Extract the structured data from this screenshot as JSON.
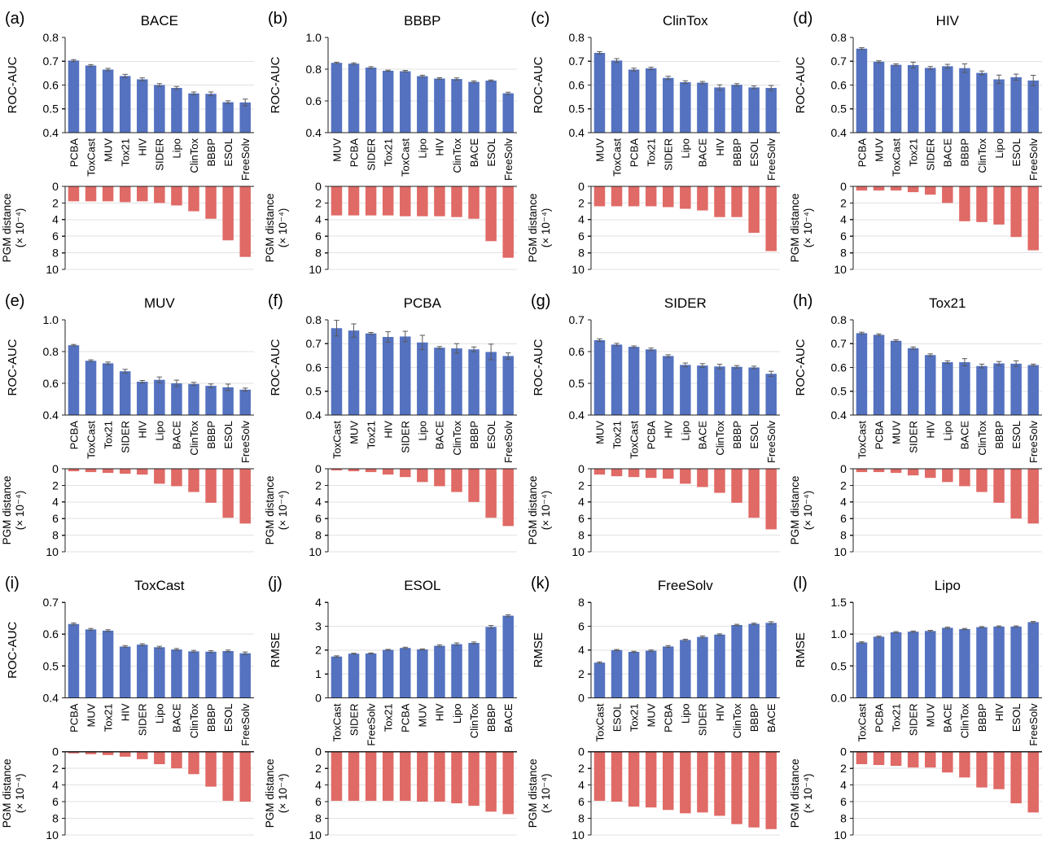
{
  "figure": {
    "colors": {
      "bar_blue": "#5472c0",
      "bar_red": "#e06a66",
      "error_bar": "#595959",
      "grid": "#e2e2e2",
      "axis": "#1f1f1f",
      "text": "#000000",
      "background": "#ffffff"
    },
    "pgm_axis": {
      "label_line1": "PGM distance",
      "label_line2": "(× 10⁻⁴)",
      "ticks": [
        0,
        2,
        4,
        6,
        8,
        10
      ],
      "tick_labels": [
        "0",
        "2",
        "4",
        "6",
        "8",
        "10"
      ],
      "max": 10,
      "direction": "down"
    }
  },
  "chart_data": [
    {
      "panel": "(a)",
      "title": "BACE",
      "type": "bar",
      "categories": [
        "PCBA",
        "ToxCast",
        "MUV",
        "Tox21",
        "HIV",
        "SIDER",
        "Lipo",
        "ClinTox",
        "BBBP",
        "ESOL",
        "FreeSolv"
      ],
      "top": {
        "ylabel": "ROC-AUC",
        "ylim": [
          0.4,
          0.8
        ],
        "yticks": [
          0.4,
          0.5,
          0.6,
          0.7,
          0.8
        ],
        "ytick_labels": [
          "0.4",
          "0.5",
          "0.6",
          "0.7",
          "0.8"
        ],
        "values": [
          0.703,
          0.682,
          0.665,
          0.638,
          0.624,
          0.6,
          0.588,
          0.565,
          0.563,
          0.528,
          0.527
        ],
        "errors": [
          0.004,
          0.004,
          0.005,
          0.007,
          0.006,
          0.006,
          0.006,
          0.006,
          0.008,
          0.006,
          0.014
        ]
      },
      "bottom": {
        "values": [
          1.8,
          1.8,
          1.8,
          1.9,
          1.8,
          2.0,
          2.3,
          3.0,
          3.9,
          6.5,
          8.5
        ]
      }
    },
    {
      "panel": "(b)",
      "title": "BBBP",
      "type": "bar",
      "categories": [
        "MUV",
        "PCBA",
        "SIDER",
        "Tox21",
        "ToxCast",
        "Lipo",
        "HIV",
        "ClinTox",
        "BACE",
        "ESOL",
        "FreeSolv"
      ],
      "top": {
        "ylabel": "ROC-AUC",
        "ylim": [
          0.4,
          1.0
        ],
        "yticks": [
          0.4,
          0.6,
          0.8,
          1.0
        ],
        "ytick_labels": [
          "0.4",
          "0.6",
          "0.8",
          "1.0"
        ],
        "values": [
          0.84,
          0.835,
          0.81,
          0.79,
          0.787,
          0.756,
          0.741,
          0.738,
          0.72,
          0.728,
          0.648
        ],
        "errors": [
          0.004,
          0.005,
          0.006,
          0.004,
          0.005,
          0.006,
          0.005,
          0.007,
          0.006,
          0.004,
          0.007
        ]
      },
      "bottom": {
        "values": [
          3.5,
          3.5,
          3.5,
          3.5,
          3.6,
          3.6,
          3.6,
          3.7,
          3.9,
          6.6,
          8.6
        ]
      }
    },
    {
      "panel": "(c)",
      "title": "ClinTox",
      "type": "bar",
      "categories": [
        "MUV",
        "ToxCast",
        "PCBA",
        "Tox21",
        "SIDER",
        "Lipo",
        "BACE",
        "HIV",
        "BBBP",
        "ESOL",
        "FreeSolv"
      ],
      "top": {
        "ylabel": "ROC-AUC",
        "ylim": [
          0.4,
          0.8
        ],
        "yticks": [
          0.4,
          0.5,
          0.6,
          0.7,
          0.8
        ],
        "ytick_labels": [
          "0.4",
          "0.5",
          "0.6",
          "0.7",
          "0.8"
        ],
        "values": [
          0.735,
          0.703,
          0.665,
          0.67,
          0.63,
          0.612,
          0.61,
          0.59,
          0.601,
          0.59,
          0.588
        ],
        "errors": [
          0.005,
          0.008,
          0.006,
          0.005,
          0.007,
          0.006,
          0.005,
          0.011,
          0.005,
          0.006,
          0.01
        ]
      },
      "bottom": {
        "values": [
          2.4,
          2.4,
          2.4,
          2.4,
          2.5,
          2.7,
          2.9,
          3.7,
          3.7,
          5.6,
          7.8
        ]
      }
    },
    {
      "panel": "(d)",
      "title": "HIV",
      "type": "bar",
      "categories": [
        "PCBA",
        "MUV",
        "ToxCast",
        "Tox21",
        "SIDER",
        "BACE",
        "BBBP",
        "ClinTox",
        "Lipo",
        "ESOL",
        "FreeSolv"
      ],
      "top": {
        "ylabel": "ROC-AUC",
        "ylim": [
          0.4,
          0.8
        ],
        "yticks": [
          0.4,
          0.5,
          0.6,
          0.7,
          0.8
        ],
        "ytick_labels": [
          "0.4",
          "0.5",
          "0.6",
          "0.7",
          "0.8"
        ],
        "values": [
          0.753,
          0.698,
          0.685,
          0.684,
          0.672,
          0.679,
          0.671,
          0.651,
          0.624,
          0.633,
          0.619
        ],
        "errors": [
          0.004,
          0.004,
          0.004,
          0.012,
          0.006,
          0.008,
          0.018,
          0.008,
          0.018,
          0.013,
          0.022
        ]
      },
      "bottom": {
        "values": [
          0.5,
          0.5,
          0.5,
          0.7,
          1.0,
          2.0,
          4.2,
          4.3,
          4.6,
          6.1,
          7.7
        ]
      }
    },
    {
      "panel": "(e)",
      "title": "MUV",
      "type": "bar",
      "categories": [
        "PCBA",
        "ToxCast",
        "Tox21",
        "SIDER",
        "HIV",
        "Lipo",
        "BACE",
        "ClinTox",
        "BBBP",
        "ESOL",
        "FreeSolv"
      ],
      "top": {
        "ylabel": "ROC-AUC",
        "ylim": [
          0.4,
          1.0
        ],
        "yticks": [
          0.4,
          0.6,
          0.8,
          1.0
        ],
        "ytick_labels": [
          "0.4",
          "0.6",
          "0.8",
          "1.0"
        ],
        "values": [
          0.84,
          0.742,
          0.726,
          0.676,
          0.61,
          0.622,
          0.6,
          0.596,
          0.584,
          0.575,
          0.56
        ],
        "errors": [
          0.005,
          0.006,
          0.008,
          0.012,
          0.008,
          0.018,
          0.02,
          0.01,
          0.012,
          0.02,
          0.01
        ]
      },
      "bottom": {
        "values": [
          0.3,
          0.4,
          0.5,
          0.6,
          0.7,
          1.8,
          2.1,
          2.8,
          4.1,
          5.9,
          6.6
        ]
      }
    },
    {
      "panel": "(f)",
      "title": "PCBA",
      "type": "bar",
      "categories": [
        "ToxCast",
        "MUV",
        "Tox21",
        "HIV",
        "SIDER",
        "Lipo",
        "BACE",
        "ClinTox",
        "BBBP",
        "ESOL",
        "FreeSolv"
      ],
      "top": {
        "ylabel": "ROC-AUC",
        "ylim": [
          0.4,
          0.8
        ],
        "yticks": [
          0.4,
          0.5,
          0.6,
          0.7,
          0.8
        ],
        "ytick_labels": [
          "0.4",
          "0.5",
          "0.6",
          "0.7",
          "0.8"
        ],
        "values": [
          0.765,
          0.755,
          0.743,
          0.728,
          0.73,
          0.705,
          0.683,
          0.68,
          0.676,
          0.665,
          0.648
        ],
        "errors": [
          0.033,
          0.028,
          0.004,
          0.022,
          0.022,
          0.03,
          0.005,
          0.02,
          0.01,
          0.033,
          0.013
        ]
      },
      "bottom": {
        "values": [
          0.2,
          0.3,
          0.4,
          0.7,
          1.0,
          1.6,
          2.1,
          2.8,
          4.0,
          5.9,
          6.9
        ]
      }
    },
    {
      "panel": "(g)",
      "title": "SIDER",
      "type": "bar",
      "categories": [
        "MUV",
        "Tox21",
        "ToxCast",
        "PCBA",
        "HIV",
        "Lipo",
        "BACE",
        "ClinTox",
        "BBBP",
        "ESOL",
        "FreeSolv"
      ],
      "top": {
        "ylabel": "ROC-AUC",
        "ylim": [
          0.4,
          0.7
        ],
        "yticks": [
          0.4,
          0.5,
          0.6,
          0.7
        ],
        "ytick_labels": [
          "0.4",
          "0.5",
          "0.6",
          "0.7"
        ],
        "values": [
          0.636,
          0.622,
          0.615,
          0.607,
          0.586,
          0.558,
          0.556,
          0.553,
          0.552,
          0.55,
          0.53
        ],
        "errors": [
          0.004,
          0.004,
          0.003,
          0.004,
          0.004,
          0.006,
          0.006,
          0.007,
          0.004,
          0.004,
          0.008
        ]
      },
      "bottom": {
        "values": [
          0.7,
          0.9,
          1.0,
          1.1,
          1.2,
          1.8,
          2.2,
          2.9,
          4.1,
          5.9,
          7.3
        ]
      }
    },
    {
      "panel": "(h)",
      "title": "Tox21",
      "type": "bar",
      "categories": [
        "ToxCast",
        "PCBA",
        "MUV",
        "SIDER",
        "HIV",
        "Lipo",
        "BACE",
        "ClinTox",
        "BBBP",
        "ESOL",
        "FreeSolv"
      ],
      "top": {
        "ylabel": "ROC-AUC",
        "ylim": [
          0.4,
          0.8
        ],
        "yticks": [
          0.4,
          0.5,
          0.6,
          0.7,
          0.8
        ],
        "ytick_labels": [
          "0.4",
          "0.5",
          "0.6",
          "0.7",
          "0.8"
        ],
        "values": [
          0.744,
          0.737,
          0.712,
          0.681,
          0.652,
          0.622,
          0.622,
          0.606,
          0.617,
          0.616,
          0.61
        ],
        "errors": [
          0.004,
          0.004,
          0.004,
          0.005,
          0.005,
          0.006,
          0.015,
          0.008,
          0.008,
          0.012,
          0.004
        ]
      },
      "bottom": {
        "values": [
          0.4,
          0.4,
          0.5,
          0.8,
          1.1,
          1.6,
          2.1,
          2.8,
          4.1,
          6.0,
          6.6
        ]
      }
    },
    {
      "panel": "(i)",
      "title": "ToxCast",
      "type": "bar",
      "categories": [
        "PCBA",
        "MUV",
        "Tox21",
        "HIV",
        "SIDER",
        "Lipo",
        "BACE",
        "ClinTox",
        "BBBP",
        "ESOL",
        "FreeSolv"
      ],
      "top": {
        "ylabel": "ROC-AUC",
        "ylim": [
          0.4,
          0.7
        ],
        "yticks": [
          0.4,
          0.5,
          0.6,
          0.7
        ],
        "ytick_labels": [
          "0.4",
          "0.5",
          "0.6",
          "0.7"
        ],
        "values": [
          0.632,
          0.615,
          0.611,
          0.561,
          0.567,
          0.559,
          0.552,
          0.546,
          0.545,
          0.547,
          0.54
        ],
        "errors": [
          0.003,
          0.003,
          0.003,
          0.003,
          0.003,
          0.003,
          0.003,
          0.003,
          0.003,
          0.003,
          0.004
        ]
      },
      "bottom": {
        "values": [
          0.2,
          0.3,
          0.4,
          0.6,
          0.9,
          1.5,
          2.0,
          2.7,
          4.2,
          5.9,
          6.0
        ]
      }
    },
    {
      "panel": "(j)",
      "title": "ESOL",
      "type": "bar",
      "categories": [
        "ToxCast",
        "SIDER",
        "FreeSolv",
        "Tox21",
        "PCBA",
        "MUV",
        "HIV",
        "Lipo",
        "ClinTox",
        "BBBP",
        "BACE"
      ],
      "top": {
        "ylabel": "RMSE",
        "ylim": [
          0,
          4
        ],
        "yticks": [
          0,
          1,
          2,
          3,
          4
        ],
        "ytick_labels": [
          "0",
          "1",
          "2",
          "3",
          "4"
        ],
        "values": [
          1.73,
          1.85,
          1.86,
          2.01,
          2.09,
          2.03,
          2.18,
          2.25,
          2.3,
          2.97,
          3.44
        ],
        "errors": [
          0.03,
          0.02,
          0.02,
          0.02,
          0.03,
          0.02,
          0.04,
          0.05,
          0.04,
          0.06,
          0.04
        ]
      },
      "bottom": {
        "values": [
          5.9,
          5.9,
          5.9,
          5.9,
          5.9,
          6.0,
          6.0,
          6.2,
          6.5,
          7.2,
          7.5
        ]
      }
    },
    {
      "panel": "(k)",
      "title": "FreeSolv",
      "type": "bar",
      "categories": [
        "ToxCast",
        "ESOL",
        "Tox21",
        "MUV",
        "PCBA",
        "Lipo",
        "SIDER",
        "HIV",
        "ClinTox",
        "BBBP",
        "BACE"
      ],
      "top": {
        "ylabel": "RMSE",
        "ylim": [
          0,
          8
        ],
        "yticks": [
          0,
          2,
          4,
          6,
          8
        ],
        "ytick_labels": [
          "0",
          "2",
          "4",
          "6",
          "8"
        ],
        "values": [
          2.95,
          4.0,
          3.85,
          3.95,
          4.3,
          4.85,
          5.1,
          5.3,
          6.1,
          6.2,
          6.28
        ],
        "errors": [
          0.06,
          0.05,
          0.05,
          0.06,
          0.08,
          0.06,
          0.08,
          0.06,
          0.06,
          0.06,
          0.1
        ]
      },
      "bottom": {
        "values": [
          5.9,
          6.0,
          6.6,
          6.7,
          7.0,
          7.4,
          7.3,
          7.7,
          8.7,
          9.1,
          9.3
        ]
      }
    },
    {
      "panel": "(l)",
      "title": "Lipo",
      "type": "bar",
      "categories": [
        "ToxCast",
        "PCBA",
        "Tox21",
        "SIDER",
        "MUV",
        "BACE",
        "ClinTox",
        "BBBP",
        "HIV",
        "ESOL",
        "FreeSolv"
      ],
      "top": {
        "ylabel": "RMSE",
        "ylim": [
          0,
          1.5
        ],
        "yticks": [
          0,
          0.5,
          1.0,
          1.5
        ],
        "ytick_labels": [
          "0.0",
          "0.5",
          "1.0",
          "1.5"
        ],
        "values": [
          0.87,
          0.96,
          1.03,
          1.04,
          1.05,
          1.1,
          1.08,
          1.11,
          1.12,
          1.12,
          1.19
        ],
        "errors": [
          0.01,
          0.01,
          0.01,
          0.01,
          0.01,
          0.01,
          0.01,
          0.01,
          0.01,
          0.01,
          0.01
        ]
      },
      "bottom": {
        "values": [
          1.5,
          1.6,
          1.7,
          1.9,
          1.9,
          2.5,
          3.1,
          4.3,
          4.5,
          6.2,
          7.3
        ]
      }
    }
  ]
}
